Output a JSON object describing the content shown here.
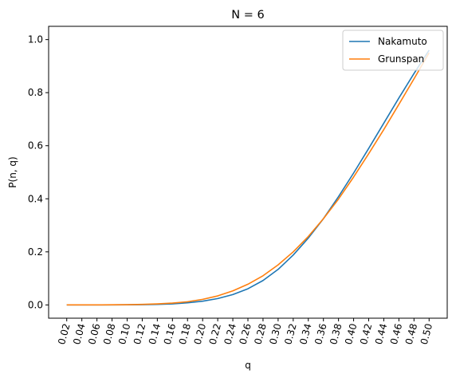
{
  "chart_data": {
    "type": "line",
    "title": "N = 6",
    "xlabel": "q",
    "ylabel": "P(n, q)",
    "x": [
      0.02,
      0.04,
      0.06,
      0.08,
      0.1,
      0.12,
      0.14,
      0.16,
      0.18,
      0.2,
      0.22,
      0.24,
      0.26,
      0.28,
      0.3,
      0.32,
      0.34,
      0.36,
      0.38,
      0.4,
      0.42,
      0.44,
      0.46,
      0.48,
      0.5
    ],
    "x_tick_labels": [
      "0.02",
      "0.04",
      "0.06",
      "0.08",
      "0.10",
      "0.12",
      "0.14",
      "0.16",
      "0.18",
      "0.20",
      "0.22",
      "0.24",
      "0.26",
      "0.28",
      "0.30",
      "0.32",
      "0.34",
      "0.36",
      "0.38",
      "0.40",
      "0.42",
      "0.44",
      "0.46",
      "0.48",
      "0.50"
    ],
    "y_ticks": [
      0.0,
      0.2,
      0.4,
      0.6,
      0.8,
      1.0
    ],
    "y_tick_labels": [
      "0.0",
      "0.2",
      "0.4",
      "0.6",
      "0.8",
      "1.0"
    ],
    "xlim": [
      -0.004,
      0.524
    ],
    "ylim": [
      -0.05,
      1.05
    ],
    "grid": false,
    "legend_position": "upper right",
    "series": [
      {
        "name": "Nakamuto",
        "color": "#1f77b4",
        "values": [
          0.0,
          0.0,
          0.0,
          0.0,
          0.0005,
          0.001,
          0.002,
          0.004,
          0.008,
          0.014,
          0.024,
          0.039,
          0.061,
          0.092,
          0.134,
          0.188,
          0.252,
          0.325,
          0.408,
          0.497,
          0.59,
          0.685,
          0.78,
          0.872,
          0.96
        ]
      },
      {
        "name": "Grunspan",
        "color": "#ff7f0e",
        "values": [
          0.0,
          0.0,
          0.0,
          0.0005,
          0.001,
          0.002,
          0.004,
          0.007,
          0.012,
          0.021,
          0.034,
          0.053,
          0.078,
          0.11,
          0.151,
          0.2,
          0.258,
          0.325,
          0.399,
          0.482,
          0.57,
          0.661,
          0.756,
          0.852,
          0.95
        ]
      }
    ]
  }
}
